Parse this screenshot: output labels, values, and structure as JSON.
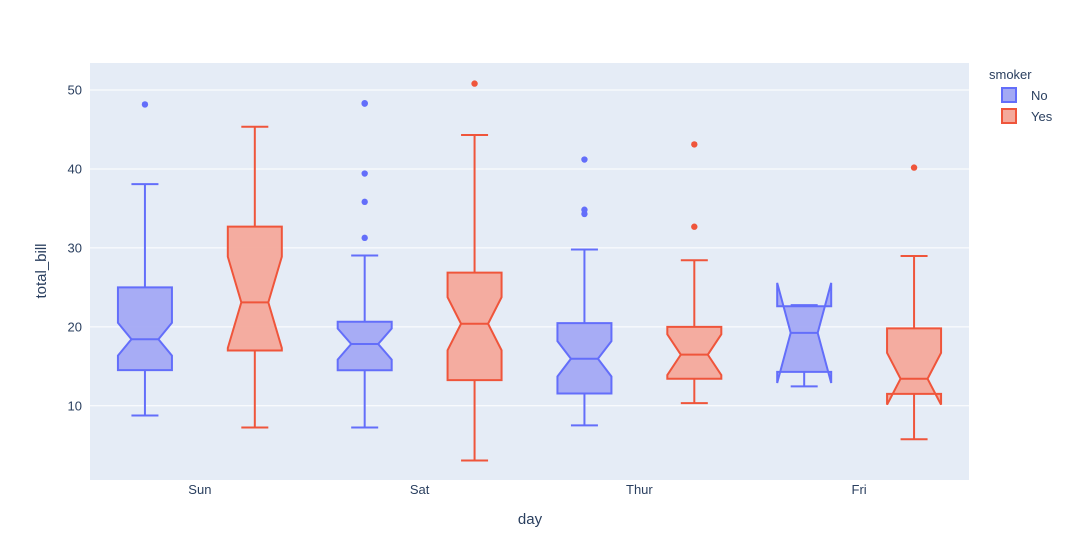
{
  "chart_data": {
    "type": "box",
    "notched": true,
    "xlabel": "day",
    "ylabel": "total_bill",
    "ylim": [
      0,
      54
    ],
    "yticks": [
      10,
      20,
      30,
      40,
      50
    ],
    "grid": true,
    "legend": {
      "title": "smoker",
      "placement": "top-right"
    },
    "categories": [
      "Sun",
      "Sat",
      "Thur",
      "Fri"
    ],
    "series": [
      {
        "name": "No",
        "color": "#636efa",
        "fill": "#a3a9f4",
        "boxes": [
          {
            "category": "Sun",
            "lower_whisker": 8.77,
            "q1": 14.51,
            "median": 18.43,
            "q3": 25.0,
            "upper_whisker": 38.07,
            "notch_low": 16.35,
            "notch_high": 20.51,
            "outliers": [
              48.17
            ]
          },
          {
            "category": "Sat",
            "lower_whisker": 7.25,
            "q1": 14.5,
            "median": 17.82,
            "q3": 20.65,
            "upper_whisker": 29.03,
            "notch_low": 15.85,
            "notch_high": 19.79,
            "outliers": [
              31.27,
              35.83,
              39.42,
              48.27,
              48.33
            ]
          },
          {
            "category": "Thur",
            "lower_whisker": 7.51,
            "q1": 11.55,
            "median": 15.95,
            "q3": 20.47,
            "upper_whisker": 29.8,
            "notch_low": 13.71,
            "notch_high": 18.19,
            "outliers": [
              34.3,
              34.83,
              41.19
            ]
          },
          {
            "category": "Fri",
            "lower_whisker": 12.46,
            "q1": 14.3,
            "median": 19.23,
            "q3": 22.6,
            "upper_whisker": 22.75,
            "notch_low": 12.89,
            "notch_high": 25.57,
            "outliers": []
          }
        ]
      },
      {
        "name": "Yes",
        "color": "#ef553b",
        "fill": "#f4a99b",
        "boxes": [
          {
            "category": "Sun",
            "lower_whisker": 7.25,
            "q1": 17.0,
            "median": 23.1,
            "q3": 32.7,
            "upper_whisker": 45.35,
            "notch_low": 17.32,
            "notch_high": 28.88,
            "outliers": []
          },
          {
            "category": "Sat",
            "lower_whisker": 3.07,
            "q1": 13.25,
            "median": 20.39,
            "q3": 26.86,
            "upper_whisker": 44.3,
            "notch_low": 17.03,
            "notch_high": 23.75,
            "outliers": [
              50.81
            ]
          },
          {
            "category": "Thur",
            "lower_whisker": 10.34,
            "q1": 13.42,
            "median": 16.47,
            "q3": 20.0,
            "upper_whisker": 28.44,
            "notch_low": 13.89,
            "notch_high": 19.05,
            "outliers": [
              32.68,
              43.11
            ]
          },
          {
            "category": "Fri",
            "lower_whisker": 5.75,
            "q1": 11.5,
            "median": 13.42,
            "q3": 19.8,
            "upper_whisker": 28.97,
            "notch_low": 10.14,
            "notch_high": 16.7,
            "outliers": [
              40.17
            ]
          }
        ]
      }
    ]
  }
}
